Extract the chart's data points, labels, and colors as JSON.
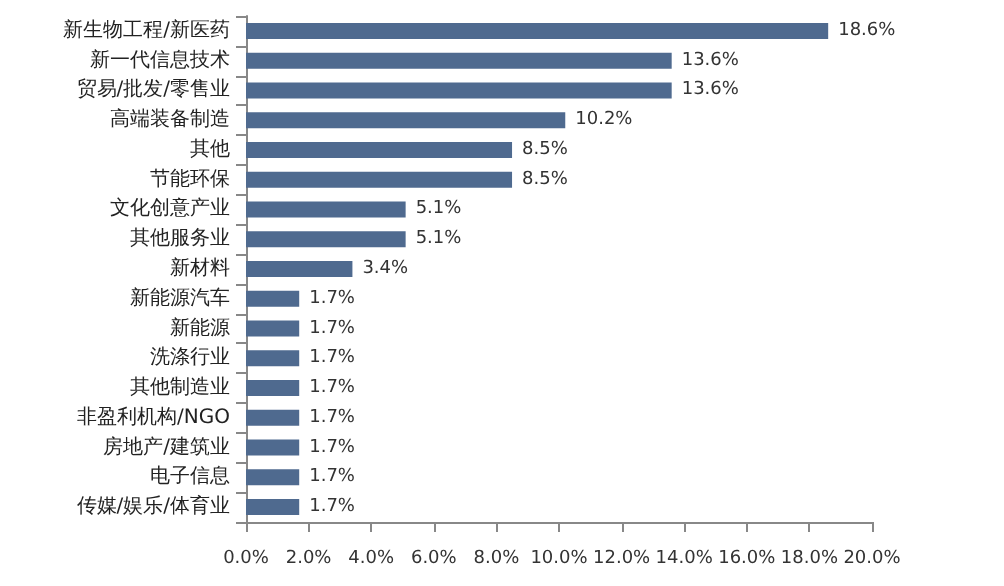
{
  "chart_data": {
    "type": "bar",
    "orientation": "horizontal",
    "categories": [
      "新生物工程/新医药",
      "新一代信息技术",
      "贸易/批发/零售业",
      "高端装备制造",
      "其他",
      "节能环保",
      "文化创意产业",
      "其他服务业",
      "新材料",
      "新能源汽车",
      "新能源",
      "洗涤行业",
      "其他制造业",
      "非盈利机构/NGO",
      "房地产/建筑业",
      "电子信息",
      "传媒/娱乐/体育业"
    ],
    "values": [
      18.6,
      13.6,
      13.6,
      10.2,
      8.5,
      8.5,
      5.1,
      5.1,
      3.4,
      1.7,
      1.7,
      1.7,
      1.7,
      1.7,
      1.7,
      1.7,
      1.7
    ],
    "value_labels": [
      "18.6%",
      "13.6%",
      "13.6%",
      "10.2%",
      "8.5%",
      "8.5%",
      "5.1%",
      "5.1%",
      "3.4%",
      "1.7%",
      "1.7%",
      "1.7%",
      "1.7%",
      "1.7%",
      "1.7%",
      "1.7%",
      "1.7%"
    ],
    "color": "#4f6a8f",
    "xlim": [
      0,
      20
    ],
    "xticks": [
      {
        "value": 0,
        "label": "0.0%"
      },
      {
        "value": 2,
        "label": "2.0%"
      },
      {
        "value": 4,
        "label": "4.0%"
      },
      {
        "value": 6,
        "label": "6.0%"
      },
      {
        "value": 8,
        "label": "8.0%"
      },
      {
        "value": 10,
        "label": "10.0%"
      },
      {
        "value": 12,
        "label": "12.0%"
      },
      {
        "value": 14,
        "label": "14.0%"
      },
      {
        "value": 16,
        "label": "16.0%"
      },
      {
        "value": 18,
        "label": "18.0%"
      },
      {
        "value": 20,
        "label": "20.0%"
      }
    ],
    "grid": false
  }
}
